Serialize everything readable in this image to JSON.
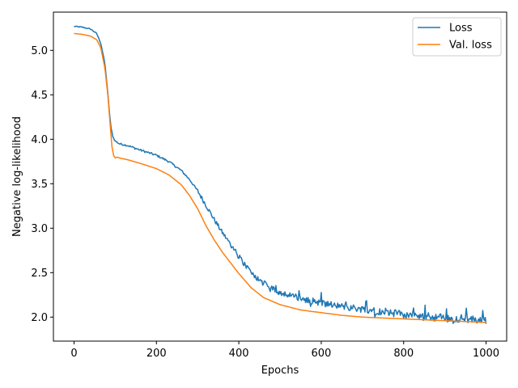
{
  "chart_data": {
    "type": "line",
    "title": "",
    "xlabel": "Epochs",
    "ylabel": "Negative log-likelihood",
    "xlim": [
      -50,
      1050
    ],
    "ylim": [
      1.73,
      5.43
    ],
    "xticks": [
      0,
      200,
      400,
      600,
      800,
      1000
    ],
    "yticks": [
      2.0,
      2.5,
      3.0,
      3.5,
      4.0,
      4.5,
      5.0
    ],
    "ytick_labels": [
      "2.0",
      "2.5",
      "3.0",
      "3.5",
      "4.0",
      "4.5",
      "5.0"
    ],
    "grid": false,
    "legend_position": "top-right",
    "series": [
      {
        "name": "Loss",
        "color": "#1f77b4",
        "noisy": true,
        "x": [
          0,
          20,
          40,
          55,
          65,
          75,
          80,
          85,
          90,
          95,
          100,
          110,
          130,
          160,
          200,
          230,
          260,
          280,
          300,
          320,
          340,
          360,
          380,
          400,
          430,
          460,
          500,
          550,
          600,
          650,
          700,
          750,
          800,
          850,
          900,
          950,
          1000
        ],
        "values": [
          5.27,
          5.26,
          5.24,
          5.19,
          5.08,
          4.85,
          4.62,
          4.35,
          4.12,
          4.02,
          3.98,
          3.95,
          3.93,
          3.88,
          3.82,
          3.75,
          3.65,
          3.55,
          3.42,
          3.26,
          3.1,
          2.95,
          2.82,
          2.68,
          2.5,
          2.38,
          2.28,
          2.21,
          2.16,
          2.12,
          2.09,
          2.06,
          2.03,
          2.01,
          1.99,
          1.98,
          1.97
        ]
      },
      {
        "name": "Val. loss",
        "color": "#ff7f0e",
        "noisy": false,
        "x": [
          0,
          20,
          40,
          55,
          65,
          75,
          82,
          88,
          92,
          96,
          100,
          105,
          110,
          130,
          160,
          200,
          230,
          260,
          280,
          300,
          320,
          340,
          360,
          380,
          400,
          430,
          460,
          500,
          550,
          600,
          650,
          700,
          750,
          800,
          850,
          900,
          950,
          1000
        ],
        "values": [
          5.19,
          5.18,
          5.16,
          5.12,
          5.03,
          4.8,
          4.5,
          4.15,
          3.92,
          3.82,
          3.79,
          3.8,
          3.79,
          3.77,
          3.73,
          3.67,
          3.6,
          3.49,
          3.37,
          3.22,
          3.03,
          2.87,
          2.73,
          2.61,
          2.49,
          2.33,
          2.22,
          2.14,
          2.08,
          2.05,
          2.02,
          2.0,
          1.99,
          1.98,
          1.97,
          1.96,
          1.95,
          1.94
        ]
      }
    ]
  }
}
